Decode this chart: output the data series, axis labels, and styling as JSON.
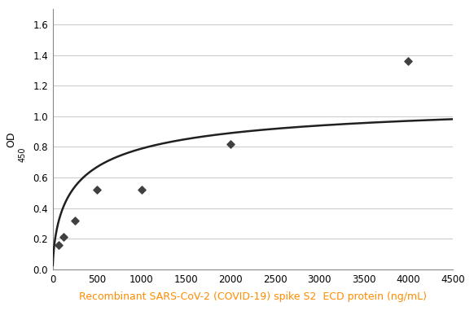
{
  "scatter_x": [
    62.5,
    125,
    250,
    500,
    1000,
    2000,
    4000
  ],
  "scatter_y": [
    0.16,
    0.21,
    0.32,
    0.52,
    0.52,
    0.82,
    1.36
  ],
  "scatter_color": "#404040",
  "curve_color": "#202020",
  "xlabel": "Recombinant SARS-CoV-2 (COVID-19) spike S2  ECD protein (ng/mL)",
  "xlabel_color": "#FF8C00",
  "ylabel": "OD",
  "ylabel_subscript": "450",
  "xlim": [
    0,
    4500
  ],
  "ylim": [
    0,
    1.7
  ],
  "xticks": [
    0,
    500,
    1000,
    1500,
    2000,
    2500,
    3000,
    3500,
    4000,
    4500
  ],
  "yticks": [
    0,
    0.2,
    0.4,
    0.6,
    0.8,
    1.0,
    1.2,
    1.4,
    1.6
  ],
  "background_color": "#ffffff",
  "grid_color": "#cccccc",
  "hill_Vmax": 1.15,
  "hill_K": 300,
  "hill_n": 0.65
}
